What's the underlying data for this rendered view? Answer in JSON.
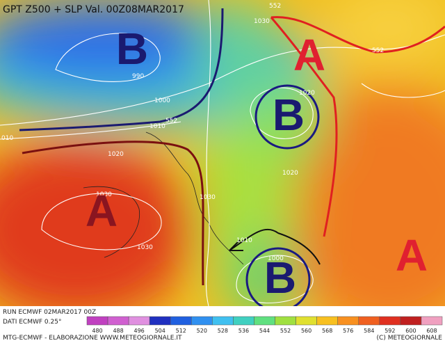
{
  "header": {
    "title": "GPT Z500 + SLP Val. 00Z08MAR2017"
  },
  "systems": {
    "low_atlantic": "B",
    "low_baltic": "B",
    "low_italy": "B",
    "high_russia": "A",
    "high_iberia": "A",
    "high_east": "A"
  },
  "contour_labels": [
    "552",
    "1030",
    "552",
    "990",
    "1000",
    "552",
    "1010",
    "010",
    "1020",
    "1020",
    "1020",
    "1030",
    "1030",
    "1030",
    "1000",
    "1010"
  ],
  "footer": {
    "run": "RUN ECMWF 02MAR2017 00Z",
    "source": "DATI ECMWF 0.25°",
    "credits": "MTG-ECMWF - ELABORAZIONE WWW.METEOGIORNALE.IT",
    "copyright": "(C) METEOGIORNALE"
  },
  "colorbar": {
    "ticks": [
      480,
      488,
      496,
      504,
      512,
      520,
      528,
      536,
      544,
      552,
      560,
      568,
      576,
      584,
      592,
      600,
      608
    ],
    "colors": [
      "#c040c0",
      "#d060d0",
      "#e090e0",
      "#2030c0",
      "#2060e0",
      "#3090f0",
      "#40c0f0",
      "#40d0c0",
      "#60e080",
      "#a0e040",
      "#e0e030",
      "#f8c020",
      "#f89020",
      "#f06020",
      "#e03020",
      "#c02020",
      "#f0a0c0"
    ]
  }
}
